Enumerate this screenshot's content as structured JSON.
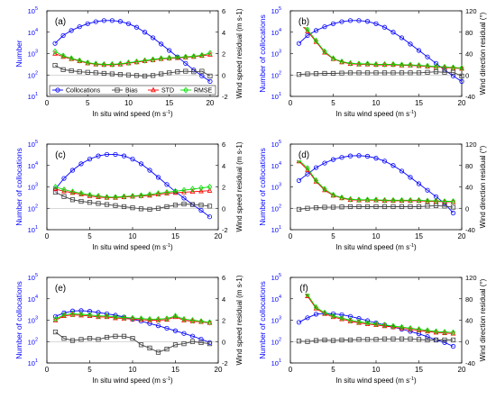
{
  "x_label": "In situ wind speed (m s",
  "x_label_sup": "-1",
  "x_label_close": ")",
  "x_ticks": [
    "0",
    "5",
    "10",
    "15",
    "20"
  ],
  "y_left_ticks": [
    "10",
    "10",
    "10",
    "10",
    "10"
  ],
  "y_left_tick_exponents": [
    "1",
    "2",
    "3",
    "4",
    "5"
  ],
  "y_right_speed_ticks": [
    "-2",
    "0",
    "2",
    "4",
    "6"
  ],
  "y_right_dir_ticks": [
    "-40",
    "0",
    "40",
    "80",
    "120"
  ],
  "legend": {
    "placement": "bottom (panel a)",
    "items": [
      {
        "label": "Collocations",
        "color": "#0000ff",
        "marker": "circle"
      },
      {
        "label": "Bias",
        "color": "#404040",
        "marker": "square"
      },
      {
        "label": "STD",
        "color": "#ff0000",
        "marker": "triangle"
      },
      {
        "label": "RMSE",
        "color": "#00dd00",
        "marker": "diamond"
      }
    ]
  },
  "colors": {
    "collocations": "#0000ff",
    "bias": "#404040",
    "std": "#ff0000",
    "rmse": "#00dd00",
    "zero_line": "#b0b0b0"
  },
  "chart_data": [
    {
      "panel": "(a)",
      "type": "line",
      "xlim": [
        0,
        21
      ],
      "ylim_left": [
        10,
        100000
      ],
      "left_scale": "log",
      "ylim_right": [
        -2,
        6
      ],
      "ylabel_left": "Number",
      "ylabel_right": "Wind speed residual (m s-1)",
      "xlabel": "In situ wind speed (m s-1)",
      "x": [
        1,
        2,
        3,
        4,
        5,
        6,
        7,
        8,
        9,
        10,
        11,
        12,
        13,
        14,
        15,
        16,
        17,
        18,
        19,
        20
      ],
      "series": [
        {
          "name": "Collocations",
          "axis": "left",
          "values": [
            3000,
            7000,
            12000,
            18000,
            25000,
            31000,
            35000,
            35000,
            32000,
            25000,
            17000,
            10000,
            5500,
            2800,
            1400,
            700,
            350,
            170,
            90,
            50
          ]
        },
        {
          "name": "Bias",
          "axis": "right",
          "values": [
            0.9,
            0.5,
            0.4,
            0.3,
            0.25,
            0.2,
            0.15,
            0.1,
            0.05,
            0.0,
            -0.05,
            -0.1,
            -0.05,
            0.1,
            0.2,
            0.3,
            0.35,
            0.3,
            0.35,
            -0.1
          ]
        },
        {
          "name": "STD",
          "axis": "right",
          "values": [
            2.0,
            1.7,
            1.5,
            1.3,
            1.1,
            1.0,
            0.95,
            0.95,
            1.0,
            1.1,
            1.2,
            1.3,
            1.4,
            1.5,
            1.55,
            1.6,
            1.65,
            1.7,
            1.8,
            1.9
          ]
        },
        {
          "name": "RMSE",
          "axis": "right",
          "values": [
            2.2,
            1.8,
            1.55,
            1.35,
            1.15,
            1.05,
            1.0,
            1.0,
            1.05,
            1.15,
            1.25,
            1.35,
            1.45,
            1.55,
            1.6,
            1.65,
            1.7,
            1.75,
            1.85,
            2.05
          ]
        }
      ]
    },
    {
      "panel": "(b)",
      "type": "line",
      "xlim": [
        0,
        20
      ],
      "ylim_left": [
        10,
        100000
      ],
      "left_scale": "log",
      "ylim_right": [
        -40,
        120
      ],
      "ylabel_left": "Number of collocations",
      "ylabel_right": "Wind direction residual (°)",
      "xlabel": "In situ wind speed (m s-1)",
      "x": [
        1,
        2,
        3,
        4,
        5,
        6,
        7,
        8,
        9,
        10,
        11,
        12,
        13,
        14,
        15,
        16,
        17,
        18,
        19,
        20
      ],
      "series": [
        {
          "name": "Collocations",
          "axis": "left",
          "values": [
            3000,
            7000,
            12000,
            18000,
            25000,
            31000,
            35000,
            35000,
            32000,
            25000,
            17000,
            10000,
            5500,
            2800,
            1400,
            700,
            350,
            170,
            90,
            50
          ]
        },
        {
          "name": "Bias",
          "axis": "right",
          "values": [
            1,
            2,
            2.5,
            3,
            3,
            3.5,
            4,
            4,
            4,
            4,
            4,
            4,
            4,
            4,
            4,
            5,
            6,
            5,
            5,
            -2
          ]
        },
        {
          "name": "STD",
          "axis": "right",
          "values": [
            98,
            82,
            62,
            42,
            30,
            24,
            21,
            20,
            20,
            19,
            19,
            19,
            18,
            18,
            17,
            16,
            15,
            14,
            13,
            12
          ]
        },
        {
          "name": "RMSE",
          "axis": "right",
          "values": [
            100,
            85,
            64,
            44,
            31,
            25,
            22,
            21,
            21,
            20,
            20,
            20,
            19,
            19,
            18,
            17,
            16,
            15,
            14,
            13
          ]
        }
      ]
    },
    {
      "panel": "(c)",
      "type": "line",
      "xlim": [
        0,
        20
      ],
      "ylim_left": [
        10,
        100000
      ],
      "left_scale": "log",
      "ylim_right": [
        -2,
        6
      ],
      "ylabel_left": "Number of collocations",
      "ylabel_right": "Wind speed residual (m s-1)",
      "xlabel": "In situ wind speed (m s-1)",
      "x": [
        1,
        2,
        3,
        4,
        5,
        6,
        7,
        8,
        9,
        10,
        11,
        12,
        13,
        14,
        15,
        16,
        17,
        18,
        19
      ],
      "series": [
        {
          "name": "Collocations",
          "axis": "left",
          "values": [
            800,
            2500,
            6000,
            12000,
            20000,
            28000,
            33000,
            33000,
            28000,
            20000,
            12000,
            6000,
            2800,
            1300,
            600,
            300,
            150,
            80,
            40
          ]
        },
        {
          "name": "Bias",
          "axis": "right",
          "values": [
            1.5,
            1.1,
            0.8,
            0.65,
            0.55,
            0.45,
            0.35,
            0.25,
            0.15,
            0.05,
            -0.05,
            -0.1,
            0.0,
            0.15,
            0.3,
            0.4,
            0.35,
            0.3,
            0.2
          ]
        },
        {
          "name": "STD",
          "axis": "right",
          "values": [
            1.8,
            1.6,
            1.45,
            1.3,
            1.15,
            1.05,
            1.0,
            1.0,
            1.05,
            1.1,
            1.15,
            1.2,
            1.3,
            1.4,
            1.45,
            1.5,
            1.55,
            1.6,
            1.65
          ]
        },
        {
          "name": "RMSE",
          "axis": "right",
          "values": [
            2.0,
            1.75,
            1.55,
            1.4,
            1.25,
            1.15,
            1.05,
            1.05,
            1.1,
            1.15,
            1.2,
            1.3,
            1.4,
            1.5,
            1.6,
            1.7,
            1.8,
            1.9,
            2.0
          ]
        }
      ]
    },
    {
      "panel": "(d)",
      "type": "line",
      "xlim": [
        0,
        20
      ],
      "ylim_left": [
        10,
        100000
      ],
      "left_scale": "log",
      "ylim_right": [
        -40,
        120
      ],
      "ylabel_left": "Number of collocations",
      "ylabel_right": "Wind direction residual (°)",
      "xlabel": "In situ wind speed (m s-1)",
      "x": [
        1,
        2,
        3,
        4,
        5,
        6,
        7,
        8,
        9,
        10,
        11,
        12,
        13,
        14,
        15,
        16,
        17,
        18,
        19
      ],
      "series": [
        {
          "name": "Collocations",
          "axis": "left",
          "values": [
            2000,
            4000,
            8000,
            13000,
            19000,
            24000,
            28000,
            29000,
            27000,
            22000,
            16000,
            10000,
            5500,
            2800,
            1400,
            700,
            350,
            170,
            60
          ]
        },
        {
          "name": "Bias",
          "axis": "right",
          "values": [
            -2,
            0,
            1,
            2,
            2,
            2.5,
            3,
            3,
            3,
            3,
            3,
            3,
            3,
            3,
            3,
            4,
            5,
            4,
            2
          ]
        },
        {
          "name": "STD",
          "axis": "right",
          "values": [
            88,
            72,
            50,
            34,
            24,
            19,
            16,
            15,
            15,
            15,
            14,
            14,
            14,
            14,
            14,
            13,
            13,
            12,
            12
          ]
        },
        {
          "name": "RMSE",
          "axis": "right",
          "values": [
            90,
            75,
            52,
            36,
            25,
            20,
            17,
            16,
            16,
            16,
            15,
            15,
            15,
            15,
            15,
            14,
            14,
            13,
            13
          ]
        }
      ]
    },
    {
      "panel": "(e)",
      "type": "line",
      "xlim": [
        0,
        20
      ],
      "ylim_left": [
        10,
        100000
      ],
      "left_scale": "log",
      "ylim_right": [
        -2,
        6
      ],
      "ylabel_left": "Number of collocations",
      "ylabel_right": "Wind speed residual (m s-1)",
      "xlabel": "In situ wind speed (m s-1)",
      "x": [
        1,
        2,
        3,
        4,
        5,
        6,
        7,
        8,
        9,
        10,
        11,
        12,
        13,
        14,
        15,
        16,
        17,
        18,
        19
      ],
      "series": [
        {
          "name": "Collocations",
          "axis": "left",
          "values": [
            1500,
            2200,
            2700,
            2800,
            2600,
            2300,
            2000,
            1700,
            1400,
            1100,
            900,
            700,
            550,
            420,
            320,
            240,
            180,
            130,
            90
          ]
        },
        {
          "name": "Bias",
          "axis": "right",
          "values": [
            0.9,
            0.3,
            0.1,
            0.2,
            0.3,
            0.2,
            0.4,
            0.5,
            0.5,
            0.3,
            -0.3,
            -0.6,
            -1.0,
            -0.7,
            -0.3,
            -0.2,
            0.0,
            -0.1,
            -0.2
          ]
        },
        {
          "name": "STD",
          "axis": "right",
          "values": [
            2.0,
            2.4,
            2.5,
            2.45,
            2.4,
            2.3,
            2.3,
            2.2,
            2.15,
            2.1,
            2.05,
            2.0,
            2.0,
            2.05,
            2.3,
            2.0,
            1.9,
            1.85,
            1.75
          ]
        },
        {
          "name": "RMSE",
          "axis": "right",
          "values": [
            2.1,
            2.5,
            2.6,
            2.55,
            2.5,
            2.4,
            2.4,
            2.3,
            2.25,
            2.2,
            2.15,
            2.1,
            2.1,
            2.15,
            2.4,
            2.1,
            2.0,
            1.9,
            1.8
          ]
        }
      ]
    },
    {
      "panel": "(f)",
      "type": "line",
      "xlim": [
        0,
        20
      ],
      "ylim_left": [
        10,
        100000
      ],
      "left_scale": "log",
      "ylim_right": [
        -40,
        120
      ],
      "ylabel_left": "Number of collocations",
      "ylabel_right": "Wind direction residual (°)",
      "xlabel": "In situ wind speed (m s-1)",
      "x": [
        1,
        2,
        3,
        4,
        5,
        6,
        7,
        8,
        9,
        10,
        11,
        12,
        13,
        14,
        15,
        16,
        17,
        18,
        19
      ],
      "series": [
        {
          "name": "Collocations",
          "axis": "left",
          "values": [
            800,
            1300,
            1900,
            2100,
            2000,
            1800,
            1500,
            1200,
            950,
            750,
            600,
            480,
            380,
            300,
            230,
            170,
            120,
            90,
            60
          ]
        },
        {
          "name": "Bias",
          "axis": "right",
          "values": [
            1,
            0,
            2,
            3,
            2,
            3,
            3,
            4,
            4,
            4,
            5,
            5,
            5,
            5,
            4,
            3,
            3,
            3,
            3
          ]
        },
        {
          "name": "STD",
          "axis": "right",
          "values": [
            105,
            85,
            62,
            52,
            46,
            42,
            38,
            35,
            33,
            31,
            29,
            27,
            25,
            23,
            21,
            19,
            17,
            16,
            15
          ]
        },
        {
          "name": "RMSE",
          "axis": "right",
          "values": [
            108,
            88,
            64,
            54,
            48,
            44,
            40,
            37,
            35,
            33,
            31,
            29,
            27,
            25,
            23,
            21,
            19,
            18,
            17
          ]
        }
      ]
    }
  ]
}
